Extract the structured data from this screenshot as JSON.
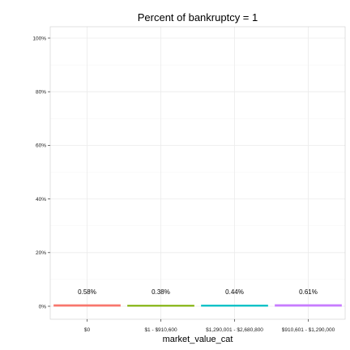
{
  "chart_data": {
    "type": "bar",
    "title": "Percent of bankruptcy = 1",
    "xlabel": "market_value_cat",
    "ylabel": "",
    "categories": [
      "$0",
      "$1 - $910,600",
      "$1,290,001 - $2,680,800",
      "$910,601 - $1,290,000"
    ],
    "values": [
      0.58,
      0.38,
      0.44,
      0.61
    ],
    "data_labels": [
      "0.58%",
      "0.38%",
      "0.44%",
      "0.61%"
    ],
    "y_ticks": [
      0,
      20,
      40,
      60,
      80,
      100
    ],
    "y_tick_labels": [
      "0%",
      "20%",
      "40%",
      "60%",
      "80%",
      "100%"
    ],
    "ylim": [
      0,
      100
    ],
    "grid": true,
    "legend": "none",
    "colors": [
      "#F8766D",
      "#7CAE00",
      "#00BFC4",
      "#C77CFF"
    ]
  }
}
